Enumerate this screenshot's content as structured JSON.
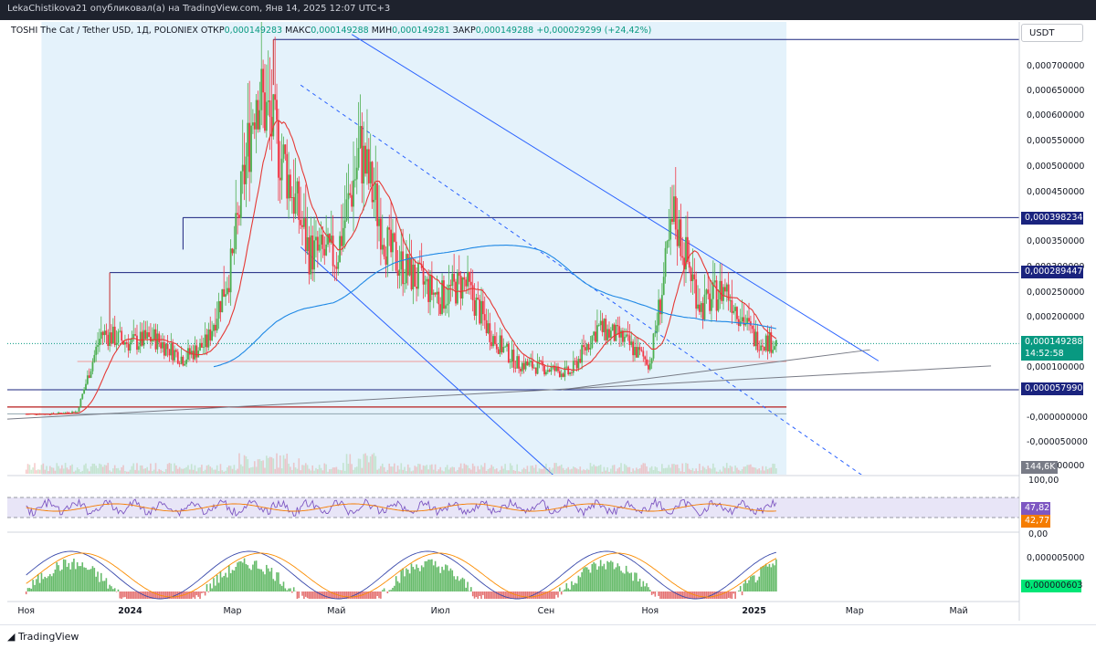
{
  "header": {
    "publisher_line": "LekaChistikova21 опубликовал(а) на TradingView.com, Янв 14, 2025 12:07 UTC+3"
  },
  "symbol": {
    "name": "TOSHI The Cat / Tether USD, 1Д, POLONIEX",
    "open_label": "ОТКР",
    "open": "0,000149283",
    "high_label": "МАКС",
    "high": "0,000149288",
    "low_label": "МИН",
    "low": "0,000149281",
    "close_label": "ЗАКР",
    "close": "0,000149288",
    "change": "+0,000029299 (+24,42%)"
  },
  "unit_button": "USDT",
  "footer": {
    "logo": "TradingView"
  },
  "colors": {
    "up": "#4caf50",
    "down": "#f23645",
    "ma_fast": "#e53935",
    "ma_slow": "#1e88e5",
    "level": "#1a237e",
    "trend": "#2962ff",
    "zone": "#dbeefa",
    "rsi_band": "#d8d4f2"
  },
  "chart_data": {
    "type": "candlestick",
    "title": "TOSHI The Cat / Tether USD, 1Д, POLONIEX",
    "x_tick_labels": [
      "Ноя",
      "2024",
      "Мар",
      "Май",
      "Июл",
      "Сен",
      "Ноя",
      "2025",
      "Мар",
      "Май"
    ],
    "y_tick_labels": [
      "0,000700000",
      "0,000650000",
      "0,000600000",
      "0,000550000",
      "0,000500000",
      "0,000450000",
      "0,000350000",
      "0,000300000",
      "0,000250000",
      "0,000200000",
      "0,000100000",
      "-0,000000000",
      "-0,000050000",
      "0,000000000"
    ],
    "ylim": [
      -0.00011,
      0.00075
    ],
    "price_close_series": {
      "x": [
        "2023-11-01",
        "2023-11-15",
        "2023-12-01",
        "2023-12-15",
        "2024-01-01",
        "2024-01-15",
        "2024-02-01",
        "2024-02-15",
        "2024-03-01",
        "2024-03-15",
        "2024-04-01",
        "2024-04-15",
        "2024-05-01",
        "2024-05-15",
        "2024-06-01",
        "2024-06-15",
        "2024-07-01",
        "2024-07-15",
        "2024-08-01",
        "2024-08-15",
        "2024-09-01",
        "2024-09-15",
        "2024-10-01",
        "2024-10-15",
        "2024-11-01",
        "2024-11-15",
        "2024-12-01",
        "2024-12-15",
        "2025-01-01",
        "2025-01-14"
      ],
      "values": [
        1e-05,
        1e-05,
        1.5e-05,
        0.00017,
        0.00015,
        0.00016,
        0.00012,
        0.00015,
        0.00031,
        0.00066,
        0.0005,
        0.00033,
        0.00032,
        0.00053,
        0.00033,
        0.00028,
        0.00024,
        0.00027,
        0.00016,
        0.00011,
        0.0001,
        9e-05,
        0.00018,
        0.00016,
        0.00011,
        0.0004,
        0.00022,
        0.00026,
        0.00016,
        0.000149288
      ]
    },
    "series": [
      {
        "name": "MA fast",
        "color": "#e53935"
      },
      {
        "name": "MA slow",
        "color": "#1e88e5"
      }
    ],
    "price_levels": [
      {
        "label": "0,000398234",
        "color": "#1a237e"
      },
      {
        "label": "0,000289447",
        "color": "#1a237e"
      },
      {
        "label": "0,000057990",
        "color": "#1a237e"
      }
    ],
    "last_price": {
      "label": "0,000149288",
      "countdown": "14:52:58",
      "color": "#089981"
    },
    "volume_label": "144,6K",
    "rsi": {
      "y_tick_labels": [
        "100,00",
        "0,00"
      ],
      "value_1": "47,82",
      "value_2": "42,77"
    },
    "oscillator": {
      "y_tick_labels": [
        "0,000005000"
      ],
      "value": "0,000000603"
    },
    "grid": false
  }
}
